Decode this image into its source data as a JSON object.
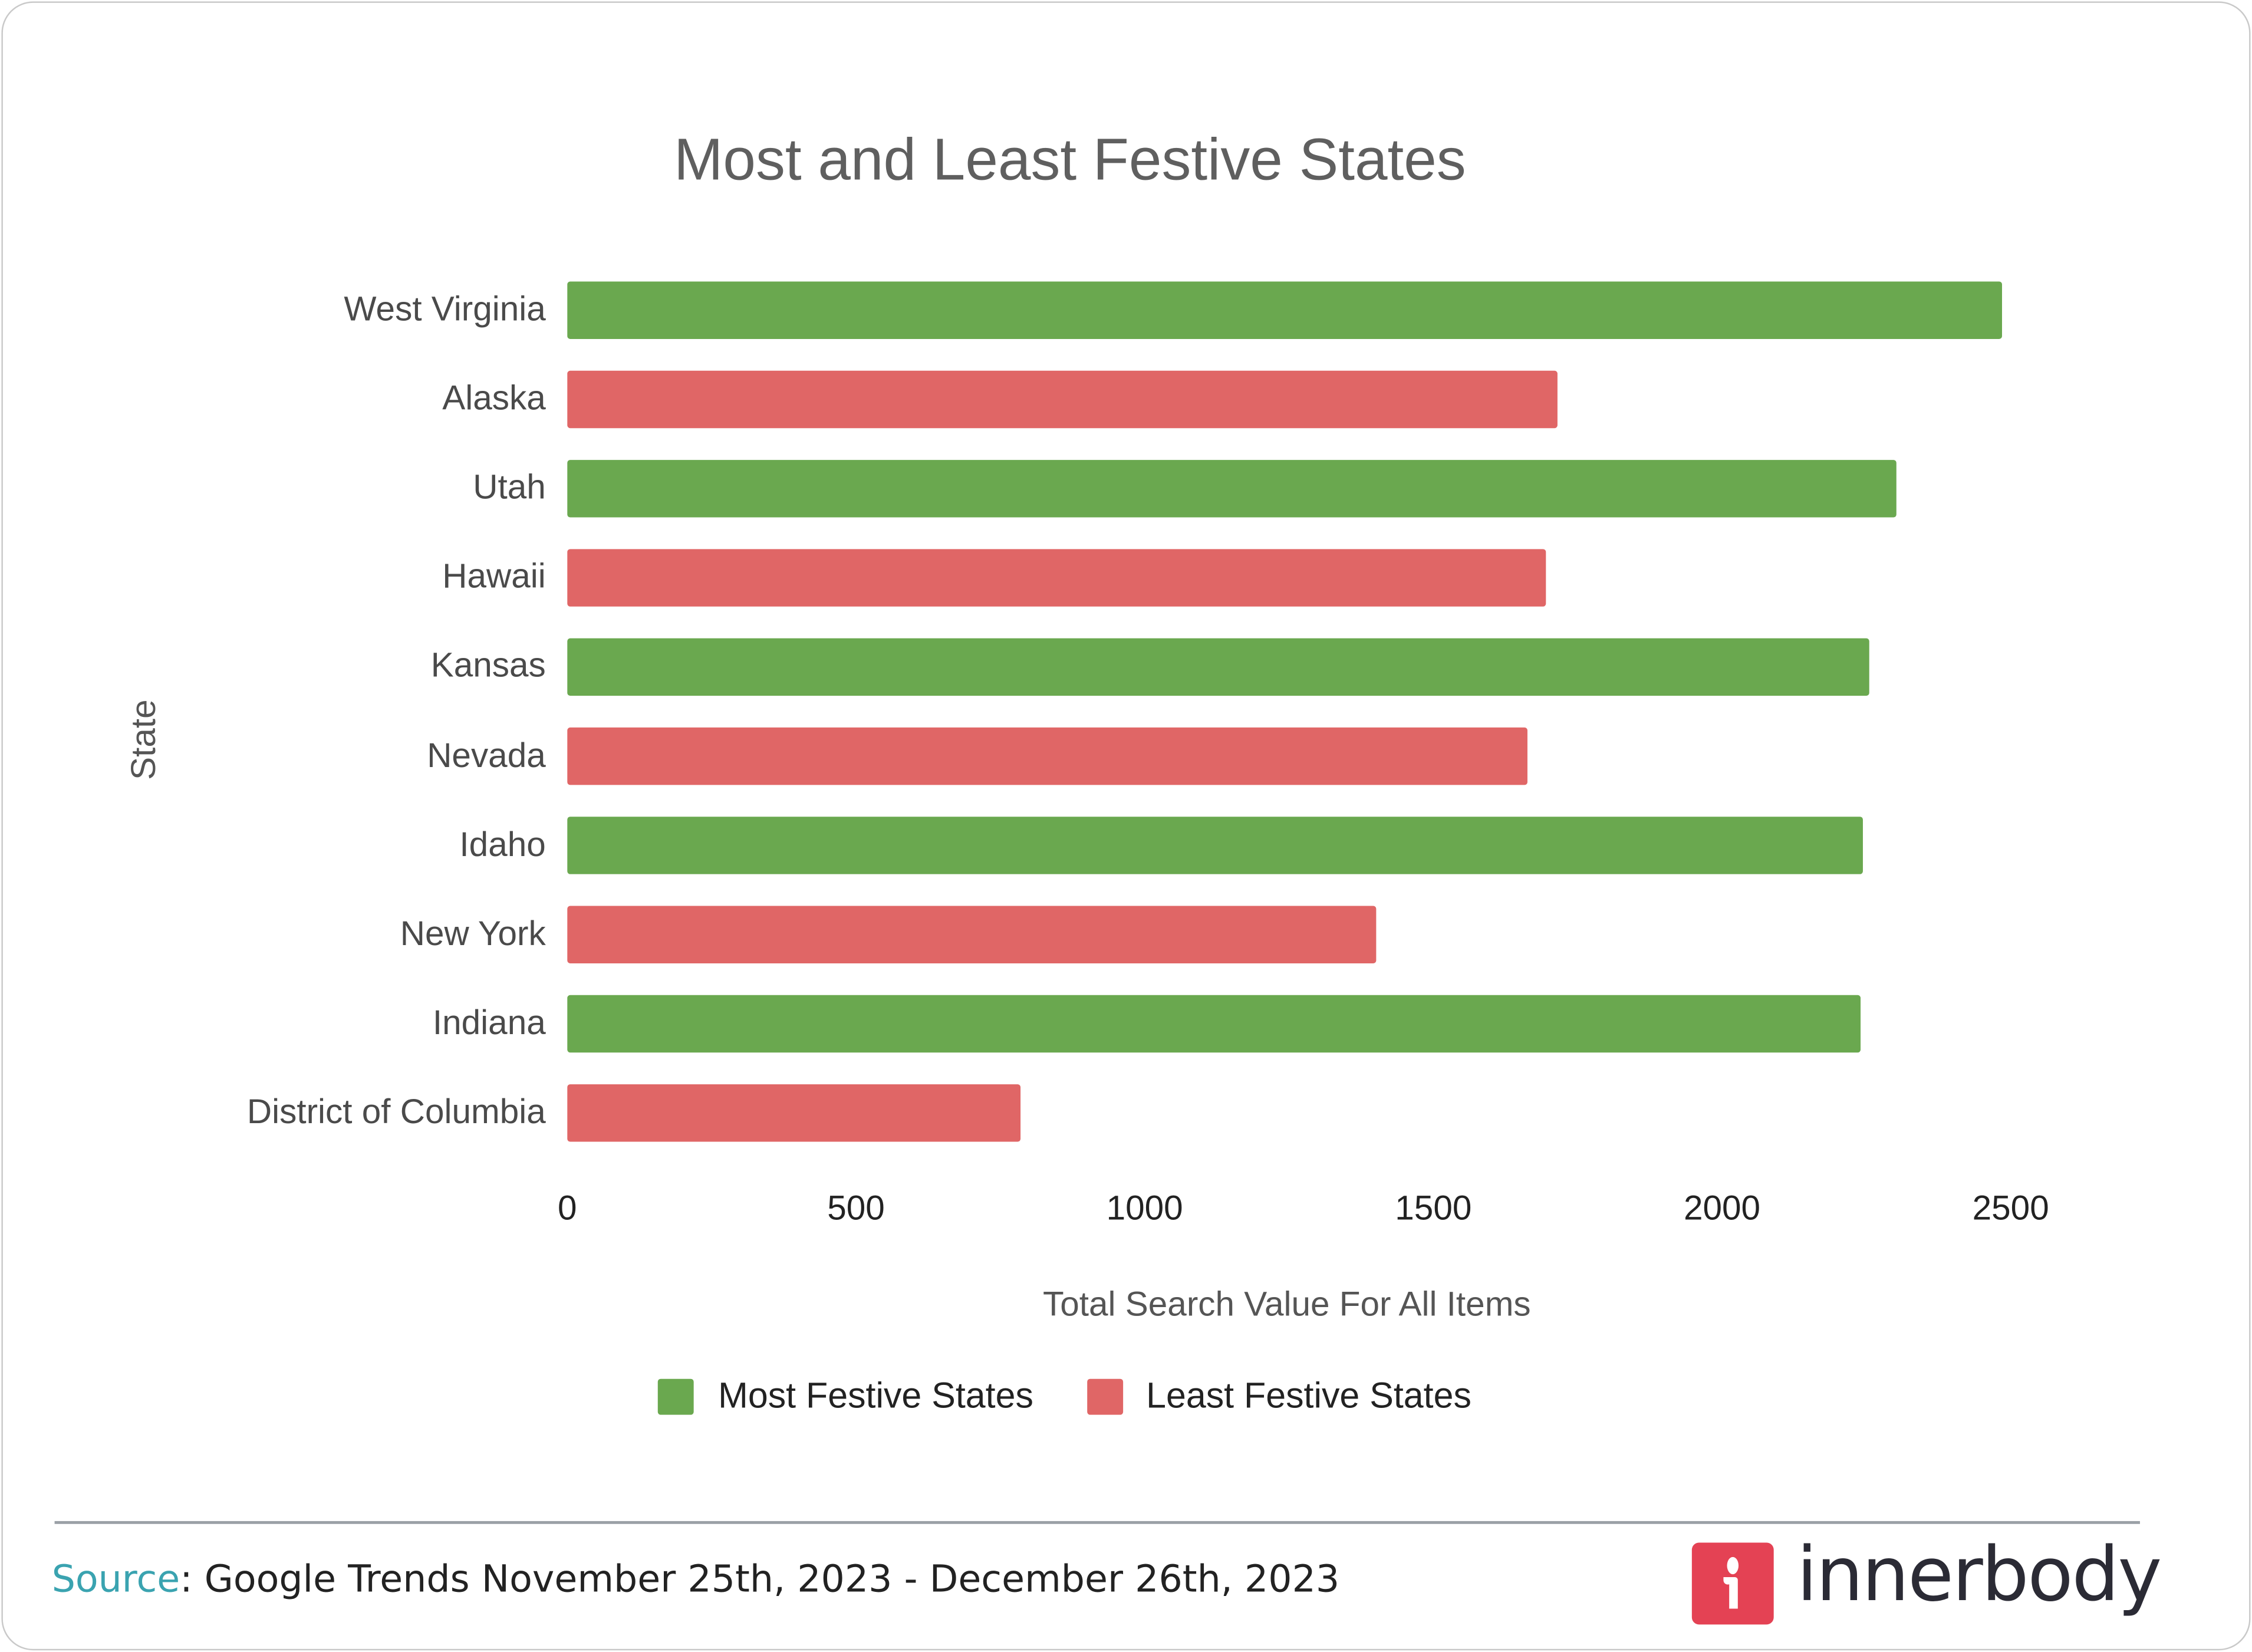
{
  "chart_data": {
    "type": "bar",
    "orientation": "horizontal",
    "title": "Most and Least Festive States",
    "xlabel": "Total Search Value For All Items",
    "ylabel": "State",
    "xlim": [
      0,
      2500
    ],
    "xticks": [
      "0",
      "500",
      "1000",
      "1500",
      "2000",
      "2500"
    ],
    "grid": false,
    "legend_position": "bottom",
    "categories": [
      "West Virginia",
      "Alaska",
      "Utah",
      "Hawaii",
      "Kansas",
      "Nevada",
      "Idaho",
      "New York",
      "Indiana",
      "District of Columbia"
    ],
    "values": [
      2485,
      1715,
      2302,
      1695,
      2255,
      1663,
      2244,
      1401,
      2240,
      785
    ],
    "groups": [
      "most",
      "least",
      "most",
      "least",
      "most",
      "least",
      "most",
      "least",
      "most",
      "least"
    ],
    "series": [
      {
        "key": "most",
        "name": "Most Festive States",
        "color": "#6aa84f"
      },
      {
        "key": "least",
        "name": "Least Festive States",
        "color": "#e06666"
      }
    ]
  },
  "footer": {
    "source_label": "Source",
    "source_text": ":  Google Trends November 25th, 2023 - December 26th, 2023",
    "brand": "innerbody",
    "brand_color": "#e44254"
  }
}
